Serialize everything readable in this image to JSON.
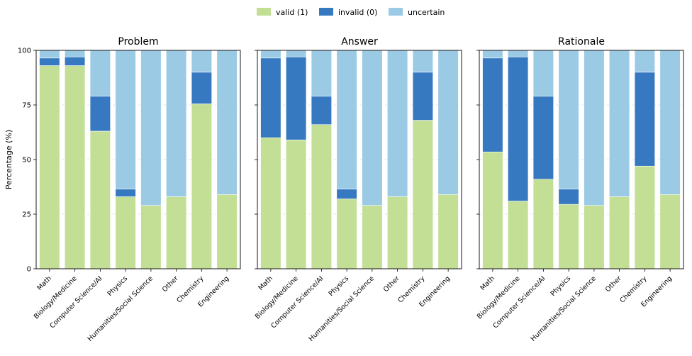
{
  "chart_data": {
    "type": "bar",
    "stacked": true,
    "ylabel": "Percentage (%)",
    "ylim": [
      0,
      100
    ],
    "yticks": [
      0,
      25,
      50,
      75,
      100
    ],
    "grid": "y dashed",
    "legend_position": "top-center",
    "categories": [
      "Math",
      "Biology/Medicine",
      "Computer Science/AI",
      "Physics",
      "Humanities/Social Science",
      "Other",
      "Chemistry",
      "Engineering"
    ],
    "series_meta": [
      {
        "name": "valid (1)",
        "color": "#c2df95"
      },
      {
        "name": "invalid (0)",
        "color": "#3779c0"
      },
      {
        "name": "uncertain",
        "color": "#9bcae4"
      }
    ],
    "panels": [
      {
        "title": "Problem",
        "series": [
          {
            "name": "valid (1)",
            "values": [
              93,
              93,
              63,
              33,
              29,
              33,
              75.5,
              34
            ]
          },
          {
            "name": "invalid (0)",
            "values": [
              3.5,
              4,
              16,
              3.5,
              0,
              0,
              14.5,
              0
            ]
          },
          {
            "name": "uncertain",
            "values": [
              3.5,
              3,
              21,
              63.5,
              71,
              67,
              10,
              66
            ]
          }
        ]
      },
      {
        "title": "Answer",
        "series": [
          {
            "name": "valid (1)",
            "values": [
              60,
              59,
              66,
              32,
              29,
              33,
              68,
              34
            ]
          },
          {
            "name": "invalid (0)",
            "values": [
              36.5,
              38,
              13,
              4.5,
              0,
              0,
              22,
              0
            ]
          },
          {
            "name": "uncertain",
            "values": [
              3.5,
              3,
              21,
              63.5,
              71,
              67,
              10,
              66
            ]
          }
        ]
      },
      {
        "title": "Rationale",
        "series": [
          {
            "name": "valid (1)",
            "values": [
              53.5,
              31,
              41,
              29.5,
              29,
              33,
              47,
              34
            ]
          },
          {
            "name": "invalid (0)",
            "values": [
              43,
              66,
              38,
              7,
              0,
              0,
              43,
              0
            ]
          },
          {
            "name": "uncertain",
            "values": [
              3.5,
              3,
              21,
              63.5,
              71,
              67,
              10,
              66
            ]
          }
        ]
      }
    ]
  }
}
